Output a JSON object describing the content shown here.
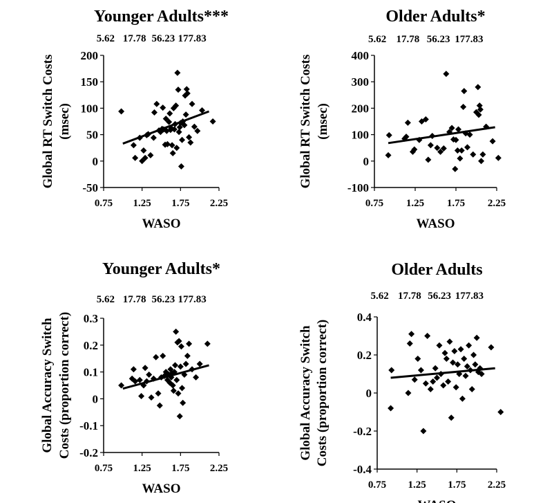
{
  "chart_data": [
    {
      "type": "scatter",
      "title": "Younger Adults***",
      "xlabel": "WASO",
      "ylabel_lines": [
        "Global RT Switch Costs",
        "(msec)"
      ],
      "xlim": [
        0.75,
        2.25
      ],
      "ylim": [
        -50,
        200
      ],
      "x_ticks": [
        0.75,
        1.25,
        1.75,
        2.25
      ],
      "y_ticks": [
        -50,
        0,
        50,
        100,
        150,
        200
      ],
      "top_ticks": [
        "5.62",
        "17.78",
        "56.23",
        "177.83"
      ],
      "trendline": [
        [
          1.0,
          33
        ],
        [
          2.12,
          94
        ]
      ],
      "points": [
        [
          0.98,
          94
        ],
        [
          1.14,
          30
        ],
        [
          1.16,
          6
        ],
        [
          1.22,
          44
        ],
        [
          1.25,
          0
        ],
        [
          1.27,
          20
        ],
        [
          1.29,
          6
        ],
        [
          1.31,
          49
        ],
        [
          1.33,
          51
        ],
        [
          1.36,
          11
        ],
        [
          1.4,
          44
        ],
        [
          1.41,
          92
        ],
        [
          1.44,
          108
        ],
        [
          1.47,
          58
        ],
        [
          1.49,
          55
        ],
        [
          1.51,
          61
        ],
        [
          1.52,
          101
        ],
        [
          1.53,
          60
        ],
        [
          1.55,
          31
        ],
        [
          1.56,
          80
        ],
        [
          1.57,
          57
        ],
        [
          1.58,
          32
        ],
        [
          1.6,
          74
        ],
        [
          1.61,
          90
        ],
        [
          1.62,
          59
        ],
        [
          1.63,
          62
        ],
        [
          1.64,
          30
        ],
        [
          1.65,
          15
        ],
        [
          1.66,
          100
        ],
        [
          1.67,
          60
        ],
        [
          1.68,
          70
        ],
        [
          1.69,
          105
        ],
        [
          1.7,
          25
        ],
        [
          1.71,
          167
        ],
        [
          1.72,
          135
        ],
        [
          1.73,
          55
        ],
        [
          1.74,
          64
        ],
        [
          1.75,
          72
        ],
        [
          1.76,
          -10
        ],
        [
          1.77,
          40
        ],
        [
          1.78,
          75
        ],
        [
          1.8,
          68
        ],
        [
          1.81,
          124
        ],
        [
          1.82,
          88
        ],
        [
          1.83,
          136
        ],
        [
          1.84,
          128
        ],
        [
          1.86,
          45
        ],
        [
          1.88,
          35
        ],
        [
          1.9,
          108
        ],
        [
          1.93,
          65
        ],
        [
          1.97,
          57
        ],
        [
          2.03,
          96
        ],
        [
          2.17,
          75
        ]
      ]
    },
    {
      "type": "scatter",
      "title": "Older Adults*",
      "xlabel": "WASO",
      "ylabel_lines": [
        "Global RT Switch Costs",
        "(msec)"
      ],
      "xlim": [
        0.75,
        2.25
      ],
      "ylim": [
        -100,
        400
      ],
      "x_ticks": [
        0.75,
        1.25,
        1.75,
        2.25
      ],
      "y_ticks": [
        -100,
        0,
        100,
        200,
        300,
        400
      ],
      "top_ticks": [
        "5.62",
        "17.78",
        "56.23",
        "177.83"
      ],
      "trendline": [
        [
          0.92,
          68
        ],
        [
          2.23,
          128
        ]
      ],
      "points": [
        [
          0.92,
          22
        ],
        [
          0.93,
          98
        ],
        [
          1.12,
          85
        ],
        [
          1.14,
          92
        ],
        [
          1.16,
          145
        ],
        [
          1.22,
          35
        ],
        [
          1.24,
          44
        ],
        [
          1.3,
          80
        ],
        [
          1.33,
          150
        ],
        [
          1.38,
          158
        ],
        [
          1.41,
          5
        ],
        [
          1.44,
          60
        ],
        [
          1.46,
          95
        ],
        [
          1.52,
          50
        ],
        [
          1.56,
          35
        ],
        [
          1.6,
          48
        ],
        [
          1.63,
          330
        ],
        [
          1.67,
          110
        ],
        [
          1.7,
          125
        ],
        [
          1.72,
          82
        ],
        [
          1.74,
          -30
        ],
        [
          1.75,
          80
        ],
        [
          1.77,
          40
        ],
        [
          1.78,
          120
        ],
        [
          1.8,
          10
        ],
        [
          1.82,
          40
        ],
        [
          1.84,
          205
        ],
        [
          1.85,
          265
        ],
        [
          1.87,
          105
        ],
        [
          1.89,
          52
        ],
        [
          1.92,
          100
        ],
        [
          1.96,
          25
        ],
        [
          2.0,
          185
        ],
        [
          2.02,
          280
        ],
        [
          2.03,
          175
        ],
        [
          2.04,
          210
        ],
        [
          2.05,
          195
        ],
        [
          2.06,
          0
        ],
        [
          2.08,
          25
        ],
        [
          2.12,
          130
        ],
        [
          2.2,
          75
        ],
        [
          2.27,
          12
        ]
      ]
    },
    {
      "type": "scatter",
      "title": "Younger Adults*",
      "xlabel": "WASO",
      "ylabel_lines": [
        "Global Accuracy Switch",
        "Costs (proportion correct)"
      ],
      "xlim": [
        0.75,
        2.25
      ],
      "ylim": [
        -0.2,
        0.3
      ],
      "x_ticks": [
        0.75,
        1.25,
        1.75,
        2.25
      ],
      "y_ticks": [
        -0.2,
        -0.1,
        0,
        0.1,
        0.2,
        0.3
      ],
      "top_ticks": [
        "5.62",
        "17.78",
        "56.23",
        "177.83"
      ],
      "trendline": [
        [
          1.0,
          0.038
        ],
        [
          2.12,
          0.125
        ]
      ],
      "points": [
        [
          0.98,
          0.05
        ],
        [
          1.12,
          0.075
        ],
        [
          1.14,
          0.11
        ],
        [
          1.16,
          0.065
        ],
        [
          1.22,
          0.07
        ],
        [
          1.24,
          0.01
        ],
        [
          1.27,
          0.05
        ],
        [
          1.29,
          0.115
        ],
        [
          1.31,
          0.065
        ],
        [
          1.34,
          0.09
        ],
        [
          1.37,
          0.005
        ],
        [
          1.4,
          0.075
        ],
        [
          1.43,
          0.155
        ],
        [
          1.46,
          0.02
        ],
        [
          1.48,
          -0.025
        ],
        [
          1.5,
          0.08
        ],
        [
          1.52,
          0.16
        ],
        [
          1.54,
          0.085
        ],
        [
          1.56,
          0.1
        ],
        [
          1.58,
          0.07
        ],
        [
          1.6,
          0.09
        ],
        [
          1.61,
          0.06
        ],
        [
          1.62,
          0.11
        ],
        [
          1.63,
          0.08
        ],
        [
          1.64,
          0.095
        ],
        [
          1.65,
          0.05
        ],
        [
          1.66,
          0.03
        ],
        [
          1.67,
          0.1
        ],
        [
          1.68,
          0.125
        ],
        [
          1.69,
          0.25
        ],
        [
          1.7,
          0.07
        ],
        [
          1.71,
          0.21
        ],
        [
          1.72,
          0.02
        ],
        [
          1.73,
          0.215
        ],
        [
          1.74,
          -0.065
        ],
        [
          1.75,
          0.12
        ],
        [
          1.76,
          0.195
        ],
        [
          1.77,
          0.04
        ],
        [
          1.78,
          -0.015
        ],
        [
          1.8,
          0.09
        ],
        [
          1.82,
          0.13
        ],
        [
          1.84,
          0.16
        ],
        [
          1.86,
          0.205
        ],
        [
          1.9,
          0.11
        ],
        [
          1.95,
          0.08
        ],
        [
          2.0,
          0.13
        ],
        [
          2.1,
          0.205
        ]
      ]
    },
    {
      "type": "scatter",
      "title": "Older Adults",
      "xlabel": "WASO",
      "ylabel_lines": [
        "Global Accuracy Switch",
        "Costs (proportion correct)"
      ],
      "xlim": [
        0.75,
        2.25
      ],
      "ylim": [
        -0.4,
        0.4
      ],
      "x_ticks": [
        0.75,
        1.25,
        1.75,
        2.25
      ],
      "y_ticks": [
        -0.4,
        -0.2,
        0,
        0.2,
        0.4
      ],
      "top_ticks": [
        "5.62",
        "17.78",
        "56.23",
        "177.83"
      ],
      "trendline": [
        [
          0.92,
          0.08
        ],
        [
          2.23,
          0.13
        ]
      ],
      "points": [
        [
          0.92,
          -0.08
        ],
        [
          0.93,
          0.12
        ],
        [
          1.14,
          0.0
        ],
        [
          1.16,
          0.26
        ],
        [
          1.18,
          0.31
        ],
        [
          1.22,
          0.07
        ],
        [
          1.26,
          0.18
        ],
        [
          1.3,
          0.12
        ],
        [
          1.33,
          -0.2
        ],
        [
          1.36,
          0.05
        ],
        [
          1.38,
          0.3
        ],
        [
          1.42,
          0.02
        ],
        [
          1.45,
          0.06
        ],
        [
          1.48,
          0.13
        ],
        [
          1.5,
          0.08
        ],
        [
          1.53,
          0.25
        ],
        [
          1.55,
          0.1
        ],
        [
          1.58,
          0.04
        ],
        [
          1.6,
          0.21
        ],
        [
          1.62,
          0.18
        ],
        [
          1.64,
          0.06
        ],
        [
          1.66,
          0.27
        ],
        [
          1.68,
          -0.13
        ],
        [
          1.7,
          0.16
        ],
        [
          1.72,
          0.22
        ],
        [
          1.74,
          0.03
        ],
        [
          1.76,
          0.15
        ],
        [
          1.78,
          0.1
        ],
        [
          1.8,
          0.23
        ],
        [
          1.82,
          -0.03
        ],
        [
          1.84,
          0.18
        ],
        [
          1.86,
          0.09
        ],
        [
          1.88,
          0.14
        ],
        [
          1.9,
          0.25
        ],
        [
          1.92,
          0.12
        ],
        [
          1.94,
          0.02
        ],
        [
          1.96,
          0.2
        ],
        [
          1.98,
          0.15
        ],
        [
          2.0,
          0.29
        ],
        [
          2.02,
          0.11
        ],
        [
          2.04,
          0.13
        ],
        [
          2.06,
          0.1
        ],
        [
          2.18,
          0.24
        ],
        [
          2.3,
          -0.1
        ]
      ]
    }
  ]
}
